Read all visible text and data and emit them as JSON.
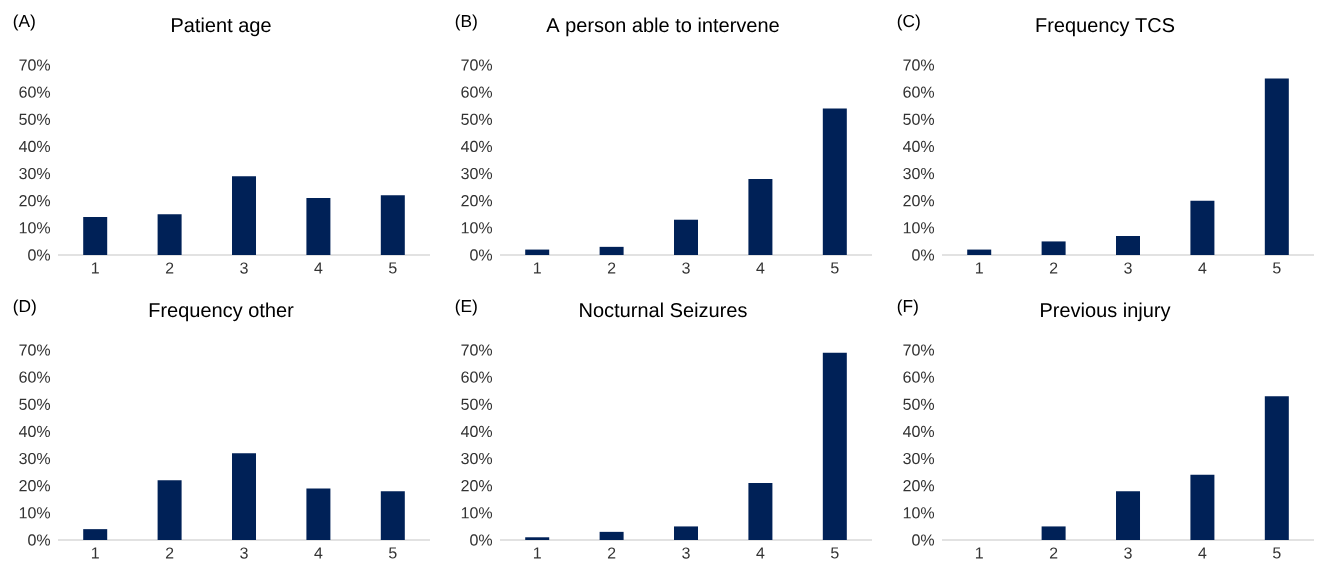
{
  "chart_data": [
    {
      "type": "bar",
      "title": "Patient age",
      "annotations": [
        "(A)"
      ],
      "categories": [
        "1",
        "2",
        "3",
        "4",
        "5"
      ],
      "values": [
        14,
        15,
        29,
        21,
        22
      ],
      "color": "#002157",
      "ylim": [
        0,
        70
      ],
      "yticks": [
        {
          "value": 0,
          "label": "0%"
        },
        {
          "value": 10,
          "label": "10%"
        },
        {
          "value": 20,
          "label": "20%"
        },
        {
          "value": 30,
          "label": "30%"
        },
        {
          "value": 40,
          "label": "40%"
        },
        {
          "value": 50,
          "label": "50%"
        },
        {
          "value": 60,
          "label": "60%"
        },
        {
          "value": 70,
          "label": "70%"
        }
      ]
    },
    {
      "type": "bar",
      "title": "A person able to intervene",
      "annotations": [
        "(B)"
      ],
      "categories": [
        "1",
        "2",
        "3",
        "4",
        "5"
      ],
      "values": [
        2,
        3,
        13,
        28,
        54
      ],
      "color": "#002157",
      "ylim": [
        0,
        70
      ],
      "yticks": [
        {
          "value": 0,
          "label": "0%"
        },
        {
          "value": 10,
          "label": "10%"
        },
        {
          "value": 20,
          "label": "20%"
        },
        {
          "value": 30,
          "label": "30%"
        },
        {
          "value": 40,
          "label": "40%"
        },
        {
          "value": 50,
          "label": "50%"
        },
        {
          "value": 60,
          "label": "60%"
        },
        {
          "value": 70,
          "label": "70%"
        }
      ]
    },
    {
      "type": "bar",
      "title": "Frequency TCS",
      "annotations": [
        "(C)"
      ],
      "categories": [
        "1",
        "2",
        "3",
        "4",
        "5"
      ],
      "values": [
        2,
        5,
        7,
        20,
        65
      ],
      "color": "#002157",
      "ylim": [
        0,
        70
      ],
      "yticks": [
        {
          "value": 0,
          "label": "0%"
        },
        {
          "value": 10,
          "label": "10%"
        },
        {
          "value": 20,
          "label": "20%"
        },
        {
          "value": 30,
          "label": "30%"
        },
        {
          "value": 40,
          "label": "40%"
        },
        {
          "value": 50,
          "label": "50%"
        },
        {
          "value": 60,
          "label": "60%"
        },
        {
          "value": 70,
          "label": "70%"
        }
      ]
    },
    {
      "type": "bar",
      "title": "Frequency other",
      "annotations": [
        "(D)"
      ],
      "categories": [
        "1",
        "2",
        "3",
        "4",
        "5"
      ],
      "values": [
        4,
        22,
        32,
        19,
        18
      ],
      "color": "#002157",
      "ylim": [
        0,
        70
      ],
      "yticks": [
        {
          "value": 0,
          "label": "0%"
        },
        {
          "value": 10,
          "label": "10%"
        },
        {
          "value": 20,
          "label": "20%"
        },
        {
          "value": 30,
          "label": "30%"
        },
        {
          "value": 40,
          "label": "40%"
        },
        {
          "value": 50,
          "label": "50%"
        },
        {
          "value": 60,
          "label": "60%"
        },
        {
          "value": 70,
          "label": "70%"
        }
      ]
    },
    {
      "type": "bar",
      "title": "Nocturnal Seizures",
      "annotations": [
        "(E)"
      ],
      "categories": [
        "1",
        "2",
        "3",
        "4",
        "5"
      ],
      "values": [
        1,
        3,
        5,
        21,
        69
      ],
      "color": "#002157",
      "ylim": [
        0,
        70
      ],
      "yticks": [
        {
          "value": 0,
          "label": "0%"
        },
        {
          "value": 10,
          "label": "10%"
        },
        {
          "value": 20,
          "label": "20%"
        },
        {
          "value": 30,
          "label": "30%"
        },
        {
          "value": 40,
          "label": "40%"
        },
        {
          "value": 50,
          "label": "50%"
        },
        {
          "value": 60,
          "label": "60%"
        },
        {
          "value": 70,
          "label": "70%"
        }
      ]
    },
    {
      "type": "bar",
      "title": "Previous injury",
      "annotations": [
        "(F)"
      ],
      "categories": [
        "1",
        "2",
        "3",
        "4",
        "5"
      ],
      "values": [
        0,
        5,
        18,
        24,
        53
      ],
      "color": "#002157",
      "ylim": [
        0,
        70
      ],
      "yticks": [
        {
          "value": 0,
          "label": "0%"
        },
        {
          "value": 10,
          "label": "10%"
        },
        {
          "value": 20,
          "label": "20%"
        },
        {
          "value": 30,
          "label": "30%"
        },
        {
          "value": 40,
          "label": "40%"
        },
        {
          "value": 50,
          "label": "50%"
        },
        {
          "value": 60,
          "label": "60%"
        },
        {
          "value": 70,
          "label": "70%"
        }
      ]
    }
  ]
}
